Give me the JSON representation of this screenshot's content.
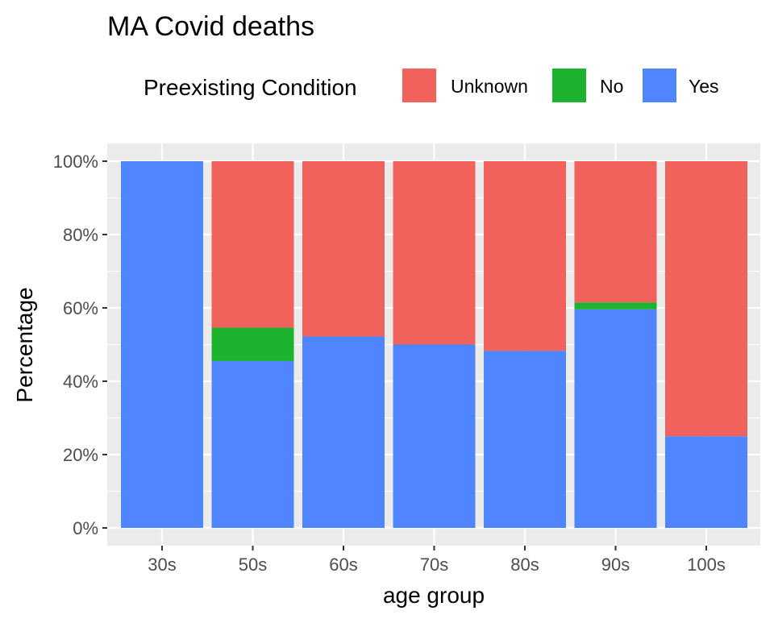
{
  "chart_data": {
    "type": "bar",
    "stacked": true,
    "title": "MA Covid deaths",
    "xlabel": "age group",
    "ylabel": "Percentage",
    "ylim": [
      0,
      100
    ],
    "y_ticks": [
      "0%",
      "20%",
      "40%",
      "60%",
      "80%",
      "100%"
    ],
    "grid": true,
    "legend": {
      "title": "Preexisting Condition",
      "position": "top"
    },
    "categories": [
      "30s",
      "50s",
      "60s",
      "70s",
      "80s",
      "90s",
      "100s"
    ],
    "series": [
      {
        "name": "Yes",
        "color": "#4f86ff",
        "values": [
          100,
          45.5,
          52.2,
          50.0,
          48.3,
          59.6,
          25.0
        ]
      },
      {
        "name": "No",
        "color": "#1db32e",
        "values": [
          0,
          9.1,
          0,
          0,
          0,
          1.9,
          0
        ]
      },
      {
        "name": "Unknown",
        "color": "#f2625c",
        "values": [
          0,
          45.4,
          47.8,
          50.0,
          51.7,
          38.5,
          75.0
        ]
      }
    ],
    "legend_order": [
      "Unknown",
      "No",
      "Yes"
    ]
  }
}
